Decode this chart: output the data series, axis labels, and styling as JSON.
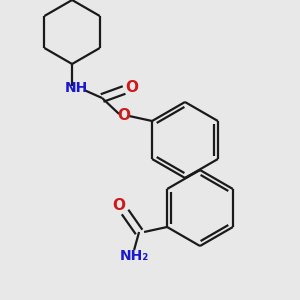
{
  "bg_color": "#e8e8e8",
  "bond_color": "#1a1a1a",
  "N_color": "#1a1acc",
  "O_color": "#cc1a1a",
  "line_width": 1.6,
  "figsize": [
    3.0,
    3.0
  ],
  "dpi": 100,
  "xlim": [
    0,
    300
  ],
  "ylim": [
    0,
    300
  ]
}
